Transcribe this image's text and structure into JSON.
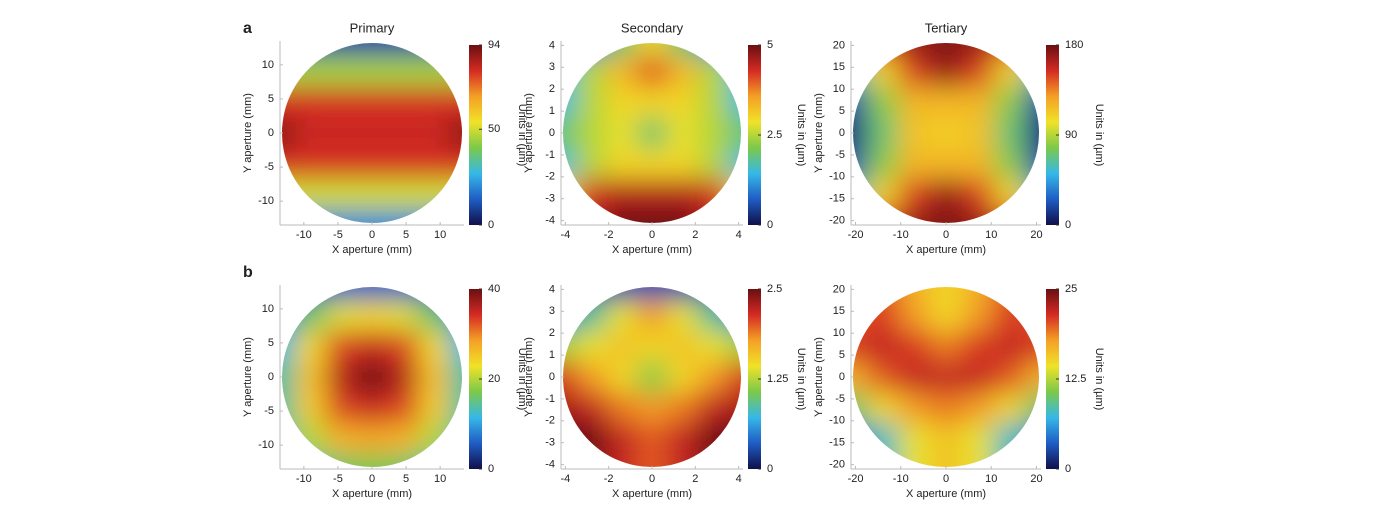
{
  "chart_data": [
    {
      "type": "heatmap",
      "panel_label": "a",
      "title": "Primary",
      "x_label": "X aperture (mm)",
      "y_label": "Y aperture (mm)",
      "colorbar_label": "Units in (µm)",
      "xlim": [
        -13.5,
        13.5
      ],
      "ylim": [
        -13.5,
        13.5
      ],
      "xticks": [
        -10,
        -5,
        0,
        5,
        10
      ],
      "yticks": [
        -10,
        -5,
        0,
        5,
        10
      ],
      "clim": [
        0,
        94
      ],
      "cticks": [
        0,
        50,
        94
      ],
      "colormap": [
        "#10104a",
        "#1f5cc4",
        "#36b8e8",
        "#7cc94a",
        "#f0e228",
        "#f4a025",
        "#d42a23",
        "#6a0f12"
      ],
      "z": [
        [
          10,
          10,
          10,
          10,
          10,
          10,
          10
        ],
        [
          45,
          45,
          45,
          45,
          45,
          45,
          45
        ],
        [
          80,
          80,
          80,
          80,
          80,
          80,
          80
        ],
        [
          90,
          82,
          82,
          82,
          82,
          82,
          90
        ],
        [
          80,
          80,
          80,
          80,
          80,
          80,
          80
        ],
        [
          50,
          50,
          50,
          50,
          50,
          50,
          50
        ],
        [
          20,
          20,
          20,
          20,
          20,
          20,
          20
        ]
      ]
    },
    {
      "type": "heatmap",
      "title": "Secondary",
      "x_label": "X aperture (mm)",
      "y_label": "Y aperture (mm)",
      "colorbar_label": "Units in (µm)",
      "xlim": [
        -4.2,
        4.2
      ],
      "ylim": [
        -4.2,
        4.2
      ],
      "xticks": [
        -4,
        -2,
        0,
        2,
        4
      ],
      "yticks": [
        -4,
        -3,
        -2,
        -1,
        0,
        1,
        2,
        3,
        4
      ],
      "clim": [
        0,
        5
      ],
      "cticks": [
        0,
        2.5,
        5
      ],
      "colormap": [
        "#10104a",
        "#1f5cc4",
        "#36b8e8",
        "#7cc94a",
        "#f0e228",
        "#f4a025",
        "#d42a23",
        "#6a0f12"
      ],
      "z": [
        [
          1,
          1,
          2,
          3,
          2,
          1,
          1
        ],
        [
          1.5,
          2.5,
          3.3,
          4,
          3.3,
          2.5,
          1.5
        ],
        [
          1.5,
          2.5,
          3,
          3,
          3,
          2.5,
          1.5
        ],
        [
          2,
          2.5,
          2.8,
          2,
          2.8,
          2.5,
          2
        ],
        [
          1.5,
          2.5,
          3,
          3,
          3,
          2.5,
          1.5
        ],
        [
          3,
          4.3,
          4.5,
          4.5,
          4.5,
          4.3,
          3
        ],
        [
          4,
          4.5,
          5,
          5,
          5,
          4.5,
          4
        ]
      ]
    },
    {
      "type": "heatmap",
      "title": "Tertiary",
      "x_label": "X aperture (mm)",
      "y_label": "Y aperture (mm)",
      "colorbar_label": "Units in (µm)",
      "xlim": [
        -21,
        21
      ],
      "ylim": [
        -21,
        21
      ],
      "xticks": [
        -20,
        -10,
        0,
        10,
        20
      ],
      "yticks": [
        -20,
        -15,
        -10,
        -5,
        0,
        5,
        10,
        15,
        20
      ],
      "clim": [
        0,
        180
      ],
      "cticks": [
        0,
        90,
        180
      ],
      "colormap": [
        "#10104a",
        "#1f5cc4",
        "#36b8e8",
        "#7cc94a",
        "#f0e228",
        "#f4a025",
        "#d42a23",
        "#6a0f12"
      ],
      "z": [
        [
          130,
          150,
          170,
          175,
          170,
          150,
          130
        ],
        [
          60,
          110,
          150,
          170,
          150,
          110,
          60
        ],
        [
          20,
          80,
          120,
          120,
          120,
          80,
          20
        ],
        [
          10,
          70,
          115,
          110,
          115,
          70,
          10
        ],
        [
          20,
          80,
          120,
          120,
          120,
          80,
          20
        ],
        [
          60,
          110,
          150,
          170,
          150,
          110,
          60
        ],
        [
          130,
          150,
          170,
          175,
          170,
          150,
          130
        ]
      ]
    },
    {
      "type": "heatmap",
      "panel_label": "b",
      "x_label": "X aperture (mm)",
      "y_label": "Y aperture (mm)",
      "colorbar_label": "Units in (µm)",
      "xlim": [
        -13.5,
        13.5
      ],
      "ylim": [
        -13.5,
        13.5
      ],
      "xticks": [
        -10,
        -5,
        0,
        5,
        10
      ],
      "yticks": [
        -10,
        -5,
        0,
        5,
        10
      ],
      "clim": [
        0,
        40
      ],
      "cticks": [
        0,
        20,
        40
      ],
      "colormap": [
        "#10104a",
        "#1f5cc4",
        "#36b8e8",
        "#7cc94a",
        "#f0e228",
        "#f4a025",
        "#d42a23",
        "#6a0f12"
      ],
      "z": [
        [
          5,
          5,
          6,
          6,
          6,
          5,
          5
        ],
        [
          8,
          16,
          22,
          24,
          22,
          16,
          8
        ],
        [
          12,
          24,
          33,
          35,
          33,
          24,
          12
        ],
        [
          14,
          26,
          36,
          40,
          36,
          26,
          14
        ],
        [
          14,
          25,
          33,
          35,
          33,
          25,
          14
        ],
        [
          14,
          20,
          27,
          28,
          27,
          20,
          14
        ],
        [
          14,
          14,
          16,
          17,
          16,
          14,
          14
        ]
      ]
    },
    {
      "type": "heatmap",
      "x_label": "X aperture (mm)",
      "y_label": "Y aperture (mm)",
      "colorbar_label": "Units in (µm)",
      "xlim": [
        -4.2,
        4.2
      ],
      "ylim": [
        -4.2,
        4.2
      ],
      "xticks": [
        -4,
        -2,
        0,
        2,
        4
      ],
      "yticks": [
        -4,
        -3,
        -2,
        -1,
        0,
        1,
        2,
        3,
        4
      ],
      "clim": [
        0,
        2.5
      ],
      "cticks": [
        0,
        1.25,
        2.5
      ],
      "colormap": [
        "#10104a",
        "#1f5cc4",
        "#36b8e8",
        "#7cc94a",
        "#f0e228",
        "#f4a025",
        "#d42a23",
        "#6a0f12"
      ],
      "z": [
        [
          0.3,
          0.3,
          0.3,
          0.3,
          0.3,
          0.3,
          0.3
        ],
        [
          0.5,
          0.9,
          1.4,
          1.8,
          1.4,
          0.9,
          0.5
        ],
        [
          1.2,
          1.4,
          1.6,
          1.5,
          1.6,
          1.4,
          1.2
        ],
        [
          2.1,
          1.8,
          1.5,
          1.1,
          1.5,
          1.8,
          2.1
        ],
        [
          2.3,
          2.2,
          1.9,
          1.8,
          1.9,
          2.2,
          2.3
        ],
        [
          2.5,
          2.5,
          2.2,
          2,
          2.2,
          2.5,
          2.5
        ],
        [
          2.4,
          2.4,
          2.2,
          2,
          2.2,
          2.4,
          2.4
        ]
      ]
    },
    {
      "type": "heatmap",
      "x_label": "X aperture (mm)",
      "y_label": "Y aperture (mm)",
      "colorbar_label": "Units in (µm)",
      "xlim": [
        -21,
        21
      ],
      "ylim": [
        -21,
        21
      ],
      "xticks": [
        -20,
        -10,
        0,
        10,
        20
      ],
      "yticks": [
        -20,
        -15,
        -10,
        -5,
        0,
        5,
        10,
        15,
        20
      ],
      "clim": [
        0,
        25
      ],
      "cticks": [
        0,
        12.5,
        25
      ],
      "colormap": [
        "#10104a",
        "#1f5cc4",
        "#36b8e8",
        "#7cc94a",
        "#f0e228",
        "#f4a025",
        "#d42a23",
        "#6a0f12"
      ],
      "z": [
        [
          20,
          20,
          17,
          15,
          17,
          20,
          20
        ],
        [
          20,
          21,
          18,
          15,
          18,
          21,
          20
        ],
        [
          21,
          22,
          21,
          19,
          21,
          22,
          21
        ],
        [
          17,
          20,
          22,
          22,
          22,
          20,
          17
        ],
        [
          10,
          15,
          18,
          19,
          18,
          15,
          10
        ],
        [
          5,
          8,
          14,
          16,
          14,
          8,
          5
        ],
        [
          5,
          8,
          14,
          16,
          14,
          8,
          5
        ]
      ]
    }
  ]
}
